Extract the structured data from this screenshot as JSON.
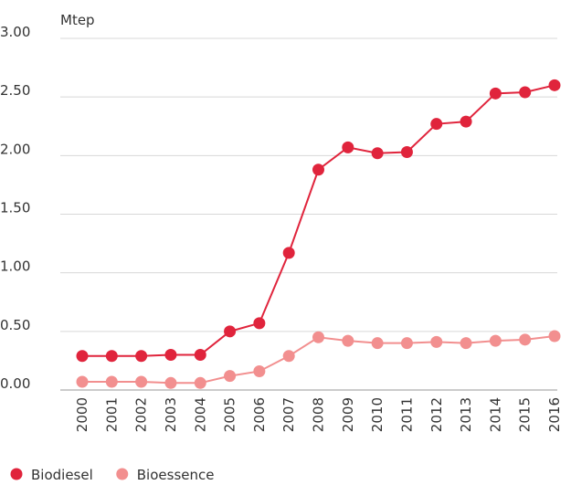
{
  "chart_data": {
    "type": "line",
    "y_unit": "Mtep",
    "categories": [
      "2000",
      "2001",
      "2002",
      "2003",
      "2004",
      "2005",
      "2006",
      "2007",
      "2008",
      "2009",
      "2010",
      "2011",
      "2012",
      "2013",
      "2014",
      "2015",
      "2016"
    ],
    "series": [
      {
        "name": "Biodiesel",
        "color": "#e0243c",
        "values": [
          0.29,
          0.29,
          0.29,
          0.3,
          0.3,
          0.5,
          0.57,
          1.17,
          1.88,
          2.07,
          2.02,
          2.03,
          2.27,
          2.29,
          2.53,
          2.54,
          2.6
        ]
      },
      {
        "name": "Bioessence",
        "color": "#f28f8f",
        "values": [
          0.07,
          0.07,
          0.07,
          0.06,
          0.06,
          0.12,
          0.16,
          0.29,
          0.45,
          0.42,
          0.4,
          0.4,
          0.41,
          0.4,
          0.42,
          0.43,
          0.46
        ]
      }
    ],
    "ylim": [
      0,
      3
    ],
    "yticks": [
      {
        "value": 0,
        "label": "0.00"
      },
      {
        "value": 0.5,
        "label": "0.50"
      },
      {
        "value": 1,
        "label": "1.00"
      },
      {
        "value": 1.5,
        "label": "1.50"
      },
      {
        "value": 2,
        "label": "2.00"
      },
      {
        "value": 2.5,
        "label": "2.50"
      },
      {
        "value": 3,
        "label": "3.00"
      }
    ],
    "grid": true,
    "legend": "bottom"
  }
}
